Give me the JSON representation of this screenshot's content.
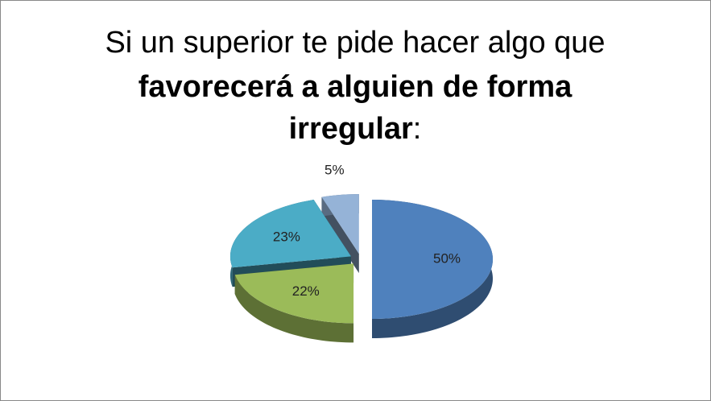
{
  "chart_data": {
    "type": "pie",
    "title_lines": [
      [
        {
          "text": "Si un superior te pide hacer algo que",
          "bold": false
        }
      ],
      [
        {
          "text": "favorecerá a alguien de forma",
          "bold": true
        }
      ],
      [
        {
          "text": "irregular",
          "bold": true
        },
        {
          "text": ":",
          "bold": false
        }
      ]
    ],
    "values": [
      50,
      22,
      23,
      5
    ],
    "value_labels": [
      "50%",
      "22%",
      "23%",
      "5%"
    ],
    "colors": [
      "#4f81bd",
      "#9bbb59",
      "#4bacc6",
      "#95b3d7"
    ]
  }
}
